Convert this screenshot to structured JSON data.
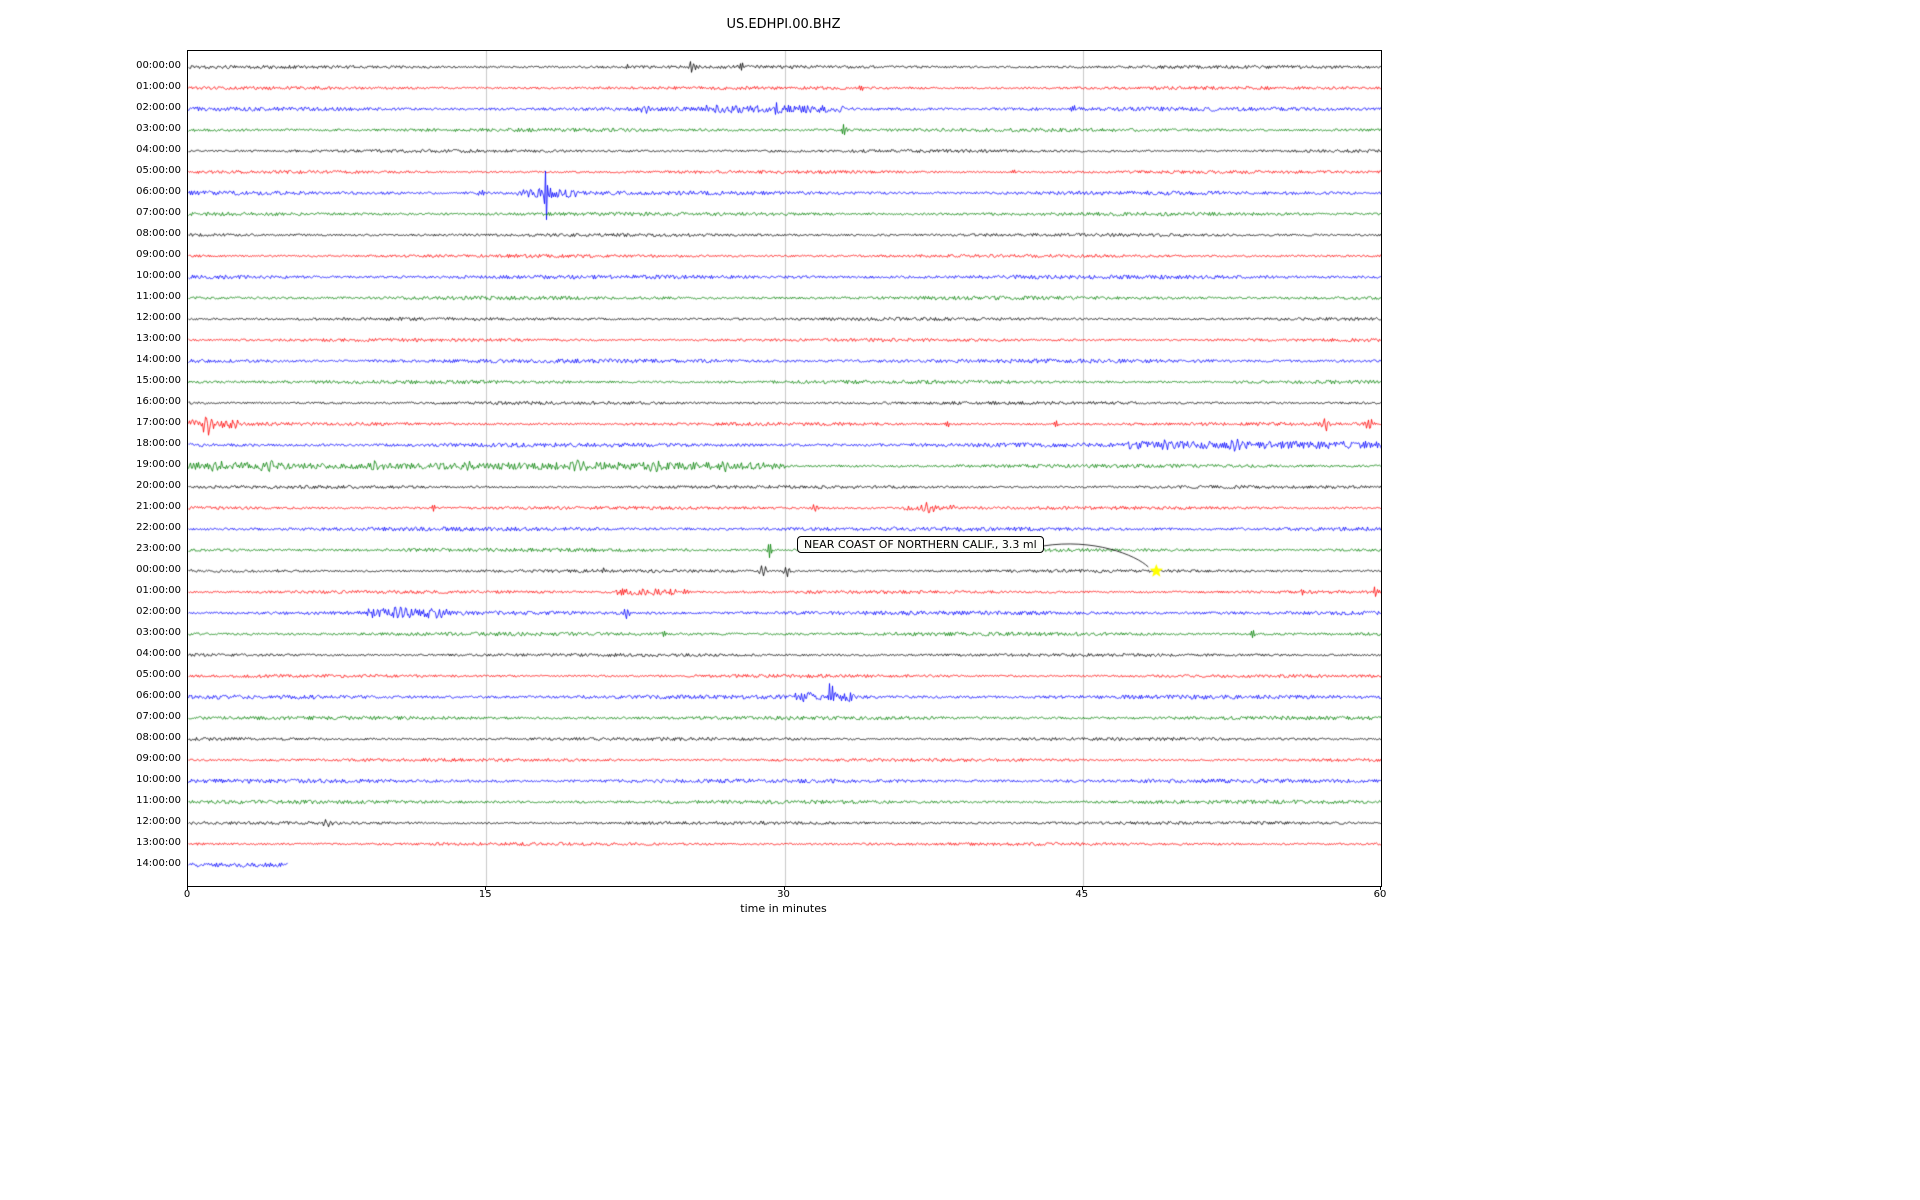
{
  "chart_data": {
    "type": "line",
    "subtype": "seismogram-helicorder-dayplot",
    "title": "US.EDHPI.00.BHZ",
    "xlabel": "time in minutes",
    "x_axis": {
      "range": [
        0,
        60
      ],
      "ticks": [
        0,
        15,
        30,
        45,
        60
      ]
    },
    "grid": {
      "vertical_gridlines_at_minutes": [
        15,
        30,
        45
      ],
      "color": "#c8c8c8"
    },
    "trace_colors": [
      "#000000",
      "#ff0000",
      "#0000ff",
      "#008000"
    ],
    "row_labels": [
      "00:00:00",
      "01:00:00",
      "02:00:00",
      "03:00:00",
      "04:00:00",
      "05:00:00",
      "06:00:00",
      "07:00:00",
      "08:00:00",
      "09:00:00",
      "10:00:00",
      "11:00:00",
      "12:00:00",
      "13:00:00",
      "14:00:00",
      "15:00:00",
      "16:00:00",
      "17:00:00",
      "18:00:00",
      "19:00:00",
      "20:00:00",
      "21:00:00",
      "22:00:00",
      "23:00:00",
      "00:00:00",
      "01:00:00",
      "02:00:00",
      "03:00:00",
      "04:00:00",
      "05:00:00",
      "06:00:00",
      "07:00:00",
      "08:00:00",
      "09:00:00",
      "10:00:00",
      "11:00:00",
      "12:00:00",
      "13:00:00",
      "14:00:00"
    ],
    "minutes_per_row": 60,
    "last_row_duration_minutes": 5,
    "annotation": {
      "text": "NEAR COAST OF NORTHERN CALIF., 3.3 ml",
      "points_to_row_index": 24,
      "points_to_row_label": "00:00:00",
      "points_to_minute": 48.7,
      "marker_color": "#ffff00",
      "marker_shape": "star"
    },
    "spikes": [
      {
        "row": 0,
        "minute": 22.0,
        "amp": 3,
        "width": 0.12
      },
      {
        "row": 0,
        "minute": 25.3,
        "amp": 6,
        "width": 0.18
      },
      {
        "row": 0,
        "minute": 27.8,
        "amp": 5,
        "width": 0.14
      },
      {
        "row": 1,
        "minute": 33.8,
        "amp": 4,
        "width": 0.1
      },
      {
        "row": 1,
        "minute": 40.3,
        "amp": 4,
        "width": 0.1
      },
      {
        "row": 2,
        "minute": 23.0,
        "amp": 4,
        "width": 0.25
      },
      {
        "row": 2,
        "minute": 29.5,
        "amp": 8,
        "width": 0.14
      },
      {
        "row": 2,
        "minute": 44.5,
        "amp": 3,
        "width": 0.12
      },
      {
        "row": 3,
        "minute": 14.8,
        "amp": 3,
        "width": 0.1
      },
      {
        "row": 3,
        "minute": 33.0,
        "amp": 9,
        "width": 0.12
      },
      {
        "row": 5,
        "minute": 41.5,
        "amp": 4,
        "width": 0.1
      },
      {
        "row": 6,
        "minute": 14.7,
        "amp": 5,
        "width": 0.12
      },
      {
        "row": 6,
        "minute": 18.0,
        "amp": 27,
        "width": 0.13
      },
      {
        "row": 9,
        "minute": 16.2,
        "amp": 3,
        "width": 0.1
      },
      {
        "row": 17,
        "minute": 1.0,
        "amp": 12,
        "width": 0.3
      },
      {
        "row": 17,
        "minute": 38.2,
        "amp": 4,
        "width": 0.1
      },
      {
        "row": 17,
        "minute": 43.6,
        "amp": 4,
        "width": 0.1
      },
      {
        "row": 17,
        "minute": 57.2,
        "amp": 6,
        "width": 0.22
      },
      {
        "row": 17,
        "minute": 59.4,
        "amp": 6,
        "width": 0.18
      },
      {
        "row": 18,
        "minute": 49.0,
        "amp": 4,
        "width": 0.2
      },
      {
        "row": 18,
        "minute": 52.6,
        "amp": 5,
        "width": 0.25
      },
      {
        "row": 19,
        "minute": 1.5,
        "amp": 4,
        "width": 0.35
      },
      {
        "row": 19,
        "minute": 4.0,
        "amp": 4,
        "width": 0.35
      },
      {
        "row": 19,
        "minute": 9.5,
        "amp": 4,
        "width": 0.3
      },
      {
        "row": 19,
        "minute": 14.0,
        "amp": 4,
        "width": 0.3
      },
      {
        "row": 19,
        "minute": 19.7,
        "amp": 4,
        "width": 0.3
      },
      {
        "row": 19,
        "minute": 23.5,
        "amp": 4,
        "width": 0.3
      },
      {
        "row": 19,
        "minute": 27.0,
        "amp": 3,
        "width": 0.3
      },
      {
        "row": 21,
        "minute": 12.3,
        "amp": 4,
        "width": 0.12
      },
      {
        "row": 21,
        "minute": 31.5,
        "amp": 5,
        "width": 0.18
      },
      {
        "row": 21,
        "minute": 37.2,
        "amp": 4,
        "width": 0.25
      },
      {
        "row": 23,
        "minute": 29.2,
        "amp": 8,
        "width": 0.12
      },
      {
        "row": 24,
        "minute": 4.5,
        "amp": 3,
        "width": 0.1
      },
      {
        "row": 24,
        "minute": 20.8,
        "amp": 3,
        "width": 0.14
      },
      {
        "row": 24,
        "minute": 28.9,
        "amp": 6,
        "width": 0.22
      },
      {
        "row": 24,
        "minute": 30.1,
        "amp": 5,
        "width": 0.18
      },
      {
        "row": 25,
        "minute": 25.0,
        "amp": 4,
        "width": 0.14
      },
      {
        "row": 25,
        "minute": 30.0,
        "amp": 3,
        "width": 0.1
      },
      {
        "row": 25,
        "minute": 56.0,
        "amp": 4,
        "width": 0.12
      },
      {
        "row": 25,
        "minute": 59.7,
        "amp": 5,
        "width": 0.14
      },
      {
        "row": 26,
        "minute": 10.5,
        "amp": 5,
        "width": 0.3
      },
      {
        "row": 26,
        "minute": 12.5,
        "amp": 5,
        "width": 0.22
      },
      {
        "row": 26,
        "minute": 22.0,
        "amp": 6,
        "width": 0.18
      },
      {
        "row": 27,
        "minute": 24.0,
        "amp": 5,
        "width": 0.12
      },
      {
        "row": 27,
        "minute": 53.5,
        "amp": 4,
        "width": 0.12
      },
      {
        "row": 30,
        "minute": 32.3,
        "amp": 16,
        "width": 0.13
      },
      {
        "row": 33,
        "minute": 13.5,
        "amp": 3,
        "width": 0.1
      },
      {
        "row": 36,
        "minute": 7.0,
        "amp": 3,
        "width": 0.25
      }
    ],
    "noise_bands": [
      {
        "row": 2,
        "from": 26,
        "to": 33,
        "amp": 2.0
      },
      {
        "row": 6,
        "from": 16.5,
        "to": 19.5,
        "amp": 3.0
      },
      {
        "row": 17,
        "from": 0,
        "to": 2.5,
        "amp": 3.0
      },
      {
        "row": 18,
        "from": 47,
        "to": 60,
        "amp": 2.5
      },
      {
        "row": 19,
        "from": 0,
        "to": 30,
        "amp": 2.0
      },
      {
        "row": 21,
        "from": 36,
        "to": 38.5,
        "amp": 2.0
      },
      {
        "row": 25,
        "from": 21.5,
        "to": 24.5,
        "amp": 2.5
      },
      {
        "row": 26,
        "from": 9,
        "to": 13,
        "amp": 3.0
      },
      {
        "row": 30,
        "from": 30.5,
        "to": 33.5,
        "amp": 3.0
      }
    ]
  }
}
